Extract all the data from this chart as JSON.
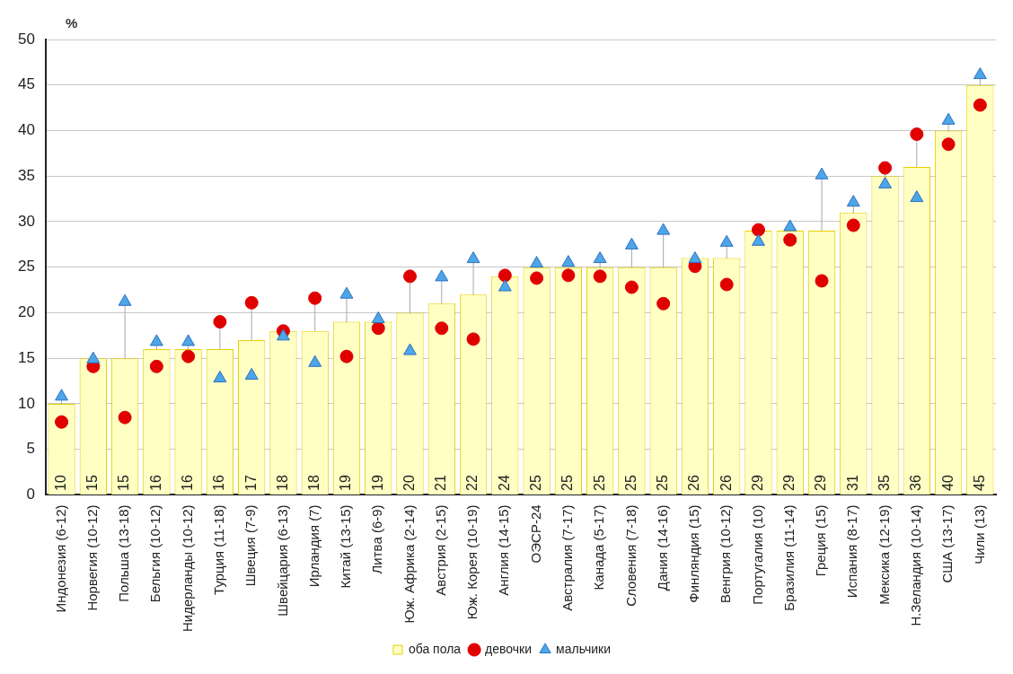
{
  "chart_data": {
    "type": "bar",
    "ylabel": "%",
    "categories": [
      "Индонезия (6-12)",
      "Норвегия (10-12)",
      "Польша (13-18)",
      "Бельгия (10-12)",
      "Нидерланды (10-12)",
      "Турция (11-18)",
      "Швеция (7-9)",
      "Швейцария (6-13)",
      "Ирландия (7)",
      "Китай (13-15)",
      "Литва (6-9)",
      "Юж. Африка (2-14)",
      "Австрия (2-15)",
      "Юж. Корея (10-19)",
      "Англия (14-15)",
      "ОЭСР-24",
      "Австралия (7-17)",
      "Канада (5-17)",
      "Словения (7-18)",
      "Дания (14-16)",
      "Финляндия (15)",
      "Венгрия (10-12)",
      "Португалия (10)",
      "Бразилия (11-14)",
      "Греция (15)",
      "Испания (8-17)",
      "Мексика (12-19)",
      "Н.Зеландия (10-14)",
      "США (13-17)",
      "Чили (13)"
    ],
    "series": [
      {
        "name": "оба пола",
        "color": "#ffffc4",
        "values": [
          10,
          15,
          15,
          16,
          16,
          16,
          17,
          18,
          18,
          19,
          19,
          20,
          21,
          22,
          24,
          25,
          25,
          25,
          25,
          25,
          26,
          26,
          29,
          29,
          29,
          31,
          35,
          36,
          40,
          45
        ],
        "value_labels": [
          "10",
          "15",
          "15",
          "16",
          "16",
          "16",
          "17",
          "18",
          "18",
          "19",
          "19",
          "20",
          "21",
          "22",
          "24",
          "25",
          "25",
          "25",
          "25",
          "25",
          "26",
          "26",
          "29",
          "29",
          "29",
          "31",
          "35",
          "36",
          "40",
          "45"
        ]
      },
      {
        "name": "девочки",
        "type": "scatter",
        "marker": "circle",
        "color": "#e00000",
        "values": [
          8.0,
          14.1,
          8.5,
          14.1,
          15.2,
          19.0,
          21.1,
          18.0,
          21.6,
          15.2,
          18.3,
          24.0,
          18.3,
          17.1,
          24.1,
          23.8,
          24.1,
          24.0,
          22.8,
          21.0,
          25.1,
          23.1,
          29.1,
          28.0,
          23.5,
          29.6,
          35.9,
          39.6,
          38.5,
          42.8
        ]
      },
      {
        "name": "мальчики",
        "type": "scatter",
        "marker": "triangle",
        "color": "#4ca6e8",
        "values": [
          10.8,
          14.9,
          21.2,
          16.8,
          16.8,
          12.8,
          13.1,
          17.4,
          14.5,
          22.0,
          19.3,
          15.8,
          23.9,
          25.9,
          22.8,
          25.4,
          25.5,
          25.9,
          27.4,
          29.0,
          25.9,
          27.7,
          27.8,
          29.4,
          35.1,
          32.1,
          34.1,
          32.6,
          41.1,
          46.1
        ]
      }
    ],
    "ylim": [
      0,
      50
    ],
    "yticks": [
      0,
      5,
      10,
      15,
      20,
      25,
      30,
      35,
      40,
      45,
      50
    ],
    "grid": "y",
    "legend": "bottom"
  }
}
